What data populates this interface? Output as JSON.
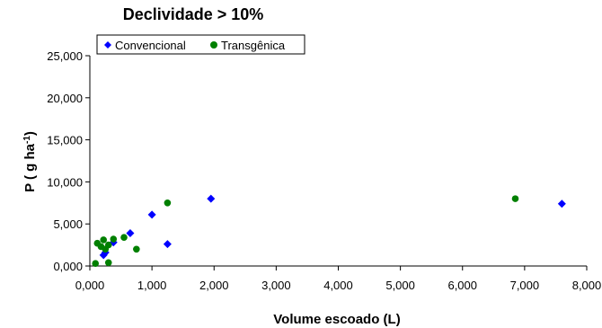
{
  "chart_data": {
    "type": "scatter",
    "title": "Declividade > 10%",
    "xlabel": "Volume escoado (L)",
    "ylabel_main": "P ( g ha",
    "ylabel_sup": "-1",
    "ylabel_close": ")",
    "xlim": [
      0,
      8000
    ],
    "ylim": [
      0,
      25000
    ],
    "x_ticks": [
      0,
      1000,
      2000,
      3000,
      4000,
      5000,
      6000,
      7000,
      8000
    ],
    "x_tick_labels": [
      "0,000",
      "1,000",
      "2,000",
      "3,000",
      "4,000",
      "5,000",
      "6,000",
      "7,000",
      "8,000"
    ],
    "y_ticks": [
      0,
      5000,
      10000,
      15000,
      20000,
      25000
    ],
    "y_tick_labels": [
      "0,000",
      "5,000",
      "10,000",
      "15,000",
      "20,000",
      "25,000"
    ],
    "grid": false,
    "legend_position": "top",
    "series": [
      {
        "name": "Convencional",
        "marker": "diamond",
        "color": "#0000ff",
        "points": [
          {
            "x": 220,
            "y": 1300
          },
          {
            "x": 250,
            "y": 1600
          },
          {
            "x": 380,
            "y": 2800
          },
          {
            "x": 650,
            "y": 3900
          },
          {
            "x": 1000,
            "y": 6100
          },
          {
            "x": 1250,
            "y": 2600
          },
          {
            "x": 1950,
            "y": 8000
          },
          {
            "x": 7600,
            "y": 7400
          }
        ]
      },
      {
        "name": "Transgênica",
        "marker": "circle",
        "color": "#008000",
        "points": [
          {
            "x": 90,
            "y": 300
          },
          {
            "x": 120,
            "y": 2700
          },
          {
            "x": 180,
            "y": 2300
          },
          {
            "x": 220,
            "y": 3100
          },
          {
            "x": 250,
            "y": 2000
          },
          {
            "x": 300,
            "y": 2500
          },
          {
            "x": 300,
            "y": 400
          },
          {
            "x": 380,
            "y": 3200
          },
          {
            "x": 550,
            "y": 3400
          },
          {
            "x": 750,
            "y": 2000
          },
          {
            "x": 1250,
            "y": 7500
          },
          {
            "x": 6850,
            "y": 8000
          }
        ]
      }
    ]
  }
}
